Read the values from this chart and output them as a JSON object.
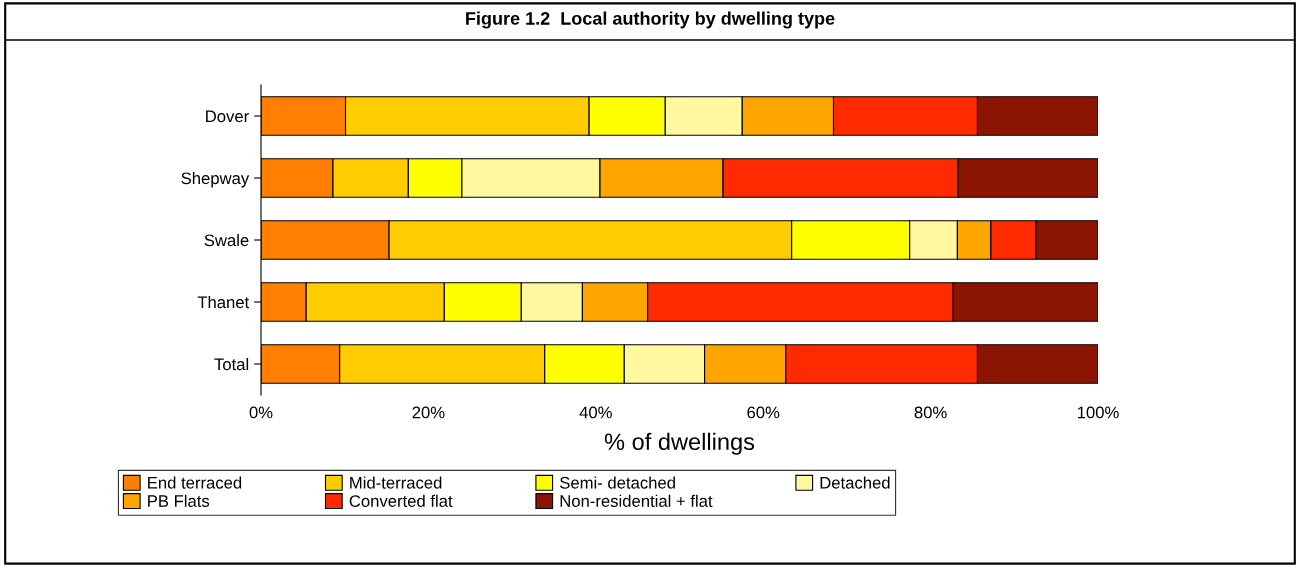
{
  "chart_data": {
    "type": "bar",
    "orientation": "horizontal",
    "stacked": true,
    "title": "Figure 1.2  Local authority by dwelling type",
    "xlabel": "% of dwellings",
    "categories": [
      "Dover",
      "Shepway",
      "Swale",
      "Thanet",
      "Total"
    ],
    "series": [
      {
        "name": "End terraced",
        "color": "#ff8000",
        "values": [
          10.1,
          8.6,
          15.3,
          5.4,
          9.4
        ]
      },
      {
        "name": "Mid-terraced",
        "color": "#ffcc00",
        "values": [
          29.1,
          9.0,
          48.1,
          16.5,
          24.5
        ]
      },
      {
        "name": "Semi- detached",
        "color": "#ffff00",
        "values": [
          9.1,
          6.4,
          14.1,
          9.2,
          9.5
        ]
      },
      {
        "name": "Detached",
        "color": "#fff8a0",
        "values": [
          9.2,
          16.5,
          5.7,
          7.3,
          9.6
        ]
      },
      {
        "name": "PB Flats",
        "color": "#ffa500",
        "values": [
          10.9,
          14.7,
          4.0,
          7.8,
          9.7
        ]
      },
      {
        "name": "Converted flat",
        "color": "#ff2a00",
        "values": [
          17.2,
          28.1,
          5.4,
          36.5,
          22.9
        ]
      },
      {
        "name": "Non-residential + flat",
        "color": "#8b1500",
        "values": [
          14.4,
          16.7,
          7.4,
          17.3,
          14.4
        ]
      }
    ],
    "xlim": [
      0,
      100
    ],
    "xticks": [
      {
        "value": 0,
        "label": "0%"
      },
      {
        "value": 20,
        "label": "20%"
      },
      {
        "value": 40,
        "label": "40%"
      },
      {
        "value": 60,
        "label": "60%"
      },
      {
        "value": 80,
        "label": "80%"
      },
      {
        "value": 100,
        "label": "100%"
      }
    ],
    "legend": "bottom"
  }
}
